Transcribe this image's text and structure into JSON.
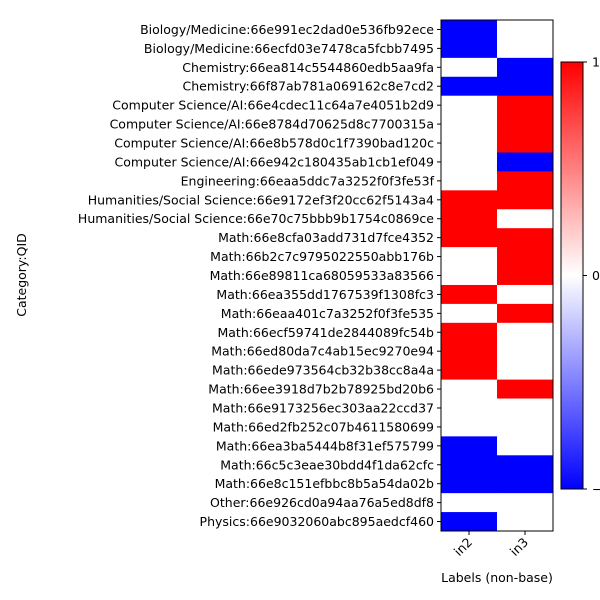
{
  "chart_data": {
    "type": "heatmap",
    "xlabel": "Labels (non-base)",
    "ylabel": "Category:QID",
    "columns": [
      "in2",
      "in3"
    ],
    "rows": [
      "Biology/Medicine:66e991ec2dad0e536fb92ece",
      "Biology/Medicine:66ecfd03e7478ca5fcbb7495",
      "Chemistry:66ea814c5544860edb5aa9fa",
      "Chemistry:66f87ab781a069162c8e7cd2",
      "Computer Science/AI:66e4cdec11c64a7e4051b2d9",
      "Computer Science/AI:66e8784d70625d8c7700315a",
      "Computer Science/AI:66e8b578d0c1f7390bad120c",
      "Computer Science/AI:66e942c180435ab1cb1ef049",
      "Engineering:66eaa5ddc7a3252f0f3fe53f",
      "Humanities/Social Science:66e9172ef3f20cc62f5143a4",
      "Humanities/Social Science:66e70c75bbb9b1754c0869ce",
      "Math:66e8cfa03add731d7fce4352",
      "Math:66b2c7c9795022550abb176b",
      "Math:66e89811ca68059533a83566",
      "Math:66ea355dd1767539f1308fc3",
      "Math:66eaa401c7a3252f0f3fe535",
      "Math:66ecf59741de2844089fc54b",
      "Math:66ed80da7c4ab15ec9270e94",
      "Math:66ede973564cb32b38cc8a4a",
      "Math:66ee3918d7b2b78925bd20b6",
      "Math:66e9173256ec303aa22ccd37",
      "Math:66ed2fb252c07b4611580699",
      "Math:66ea3ba5444b8f31ef575799",
      "Math:66c5c3eae30bdd4f1da62cfc",
      "Math:66e8c151efbbc8b5a54da02b",
      "Other:66e926cd0a94aa76a5ed8df8",
      "Physics:66e9032060abc895aedcf460"
    ],
    "values": [
      [
        -1,
        0
      ],
      [
        -1,
        0
      ],
      [
        0,
        -1
      ],
      [
        -1,
        -1
      ],
      [
        0,
        1
      ],
      [
        0,
        1
      ],
      [
        0,
        1
      ],
      [
        0,
        -1
      ],
      [
        0,
        1
      ],
      [
        1,
        1
      ],
      [
        1,
        0
      ],
      [
        1,
        1
      ],
      [
        0,
        1
      ],
      [
        0,
        1
      ],
      [
        1,
        0
      ],
      [
        0,
        1
      ],
      [
        1,
        0
      ],
      [
        1,
        0
      ],
      [
        1,
        0
      ],
      [
        0,
        1
      ],
      [
        0,
        0
      ],
      [
        0,
        0
      ],
      [
        -1,
        0
      ],
      [
        -1,
        -1
      ],
      [
        -1,
        -1
      ],
      [
        0,
        0
      ],
      [
        -1,
        0
      ]
    ],
    "colormap": "bwr",
    "colors": {
      "low": "#0000ff",
      "mid": "#ffffff",
      "high": "#ff0000"
    },
    "vlim": [
      -1,
      1
    ],
    "colorbar_ticks": [
      "1",
      "0",
      "-1"
    ]
  }
}
